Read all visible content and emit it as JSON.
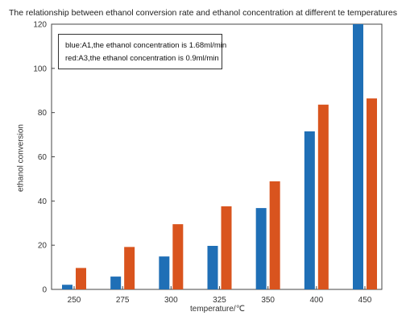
{
  "chart_data": {
    "type": "bar",
    "title": "The relationship between ethanol conversion rate and ethanol concentration at different te temperatures",
    "xlabel": "temperature/℃",
    "ylabel": "ethanol conversion",
    "categories": [
      "250",
      "275",
      "300",
      "325",
      "350",
      "400",
      "450"
    ],
    "ylim": [
      0,
      120
    ],
    "yticks": [
      0,
      20,
      40,
      60,
      80,
      100,
      120
    ],
    "grid": false,
    "legend_position": "top-left",
    "legend": [
      "blue:A1,the ethanol concentration is 1.68ml/min",
      "red:A3,the ethanol concentration is 0.9ml/min"
    ],
    "series": [
      {
        "color": "#1f6fb6",
        "values": [
          2.1,
          5.8,
          14.9,
          19.7,
          36.8,
          71.5,
          120.0
        ]
      },
      {
        "color": "#d9541e",
        "values": [
          9.7,
          19.2,
          29.5,
          37.6,
          48.9,
          83.6,
          86.4
        ]
      }
    ]
  }
}
